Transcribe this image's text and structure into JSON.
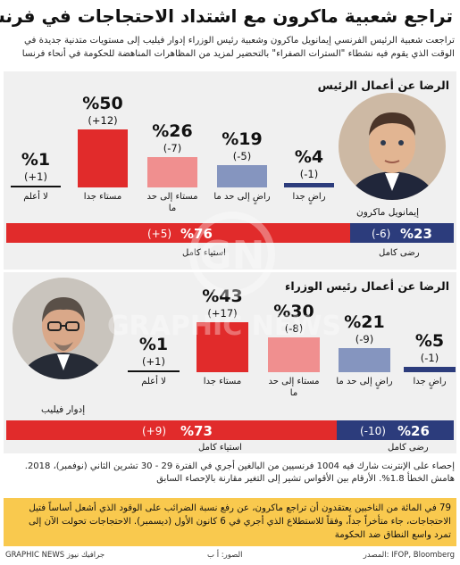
{
  "title": "تراجع شعبية ماكرون مع اشتداد الاحتجاجات في فرنسا",
  "intro": "تراجعت شعبية الرئيس الفرنسي إيمانويل ماكرون وشعبية رئيس الوزراء إدوار فيليب إلى مستويات متدنية جديدة في الوقت الذي يقوم فيه نشطاء \"السترات الصفراء\" بالتحضير لمزيد من المظاهرات المناهضة للحكومة في أنحاء فرنسا",
  "colors": {
    "very_satisfied": "#2c3c7c",
    "fairly_satisfied": "#8595bf",
    "fairly_dissatisfied": "#f08f8f",
    "very_dissatisfied": "#e12b2b",
    "no_answer": "#111111"
  },
  "chart_data": [
    {
      "type": "bar",
      "title": "الرضا عن أعمال الرئيس",
      "person": "إيمانويل ماكرون",
      "categories": [
        "راضٍ جدا",
        "راضٍ إلى حد ما",
        "مستاء إلى حد ما",
        "مستاء جدا",
        "لا أعلم"
      ],
      "values": [
        4,
        19,
        26,
        50,
        1
      ],
      "value_labels": [
        "%4",
        "%19",
        "%26",
        "%50",
        "%1"
      ],
      "changes": [
        "(-1)",
        "(-5)",
        "(-7)",
        "(+12)",
        "(+1)"
      ],
      "ylim": [
        0,
        55
      ],
      "summary": {
        "satisfied": {
          "label": "رضى كامل",
          "value": 23,
          "text": "%23",
          "change": "(-6)"
        },
        "dissatisfied": {
          "label": "استياء كامل",
          "value": 76,
          "text": "%76",
          "change": "(+5)"
        }
      }
    },
    {
      "type": "bar",
      "title": "الرضا عن أعمال رئيس الوزراء",
      "person": "إدوار فيليب",
      "categories": [
        "راضٍ جدا",
        "راضٍ إلى حد ما",
        "مستاء إلى حد ما",
        "مستاء جدا",
        "لا أعلم"
      ],
      "values": [
        5,
        21,
        30,
        43,
        1
      ],
      "value_labels": [
        "%5",
        "%21",
        "%30",
        "%43",
        "%1"
      ],
      "changes": [
        "(-1)",
        "(-9)",
        "(-8)",
        "(+17)",
        "(+1)"
      ],
      "ylim": [
        0,
        55
      ],
      "summary": {
        "satisfied": {
          "label": "رضى كامل",
          "value": 26,
          "text": "%26",
          "change": "(-10)"
        },
        "dissatisfied": {
          "label": "استياء كامل",
          "value": 73,
          "text": "%73",
          "change": "(+9)"
        }
      }
    }
  ],
  "methodology": "إحصاء على الإنترنت شارك فيه 1004 فرنسيين من البالغين أجري في الفترة 29 - 30 تشرين الثاني (نوفمبر)، 2018. هامش الخطأ 1.8%. الأرقام بين الأقواس تشير إلى التغير مقارنة بالإحصاء السابق",
  "highlight": "79 في المائة من الناخبين يعتقدون أن تراجع ماكرون، عن رفع نسبة الضرائب على الوقود الذي أشعل أساساً فتيل الاحتجاجات، جاء متأخراً جداً، وفقاً للاستطلاع الذي أجري في 6 كانون الأول (ديسمبر). الاحتجاجات تحولت الآن إلى تمرد واسع النطاق ضد الحكومة",
  "footer": {
    "source": "المصدر: IFOP, Bloomberg",
    "photos": "الصور: أ ب",
    "credit": "GRAPHIC NEWS جرافيك نيوز"
  },
  "watermark": {
    "logo": "GN",
    "text": "GRAPHIC NEWS"
  }
}
